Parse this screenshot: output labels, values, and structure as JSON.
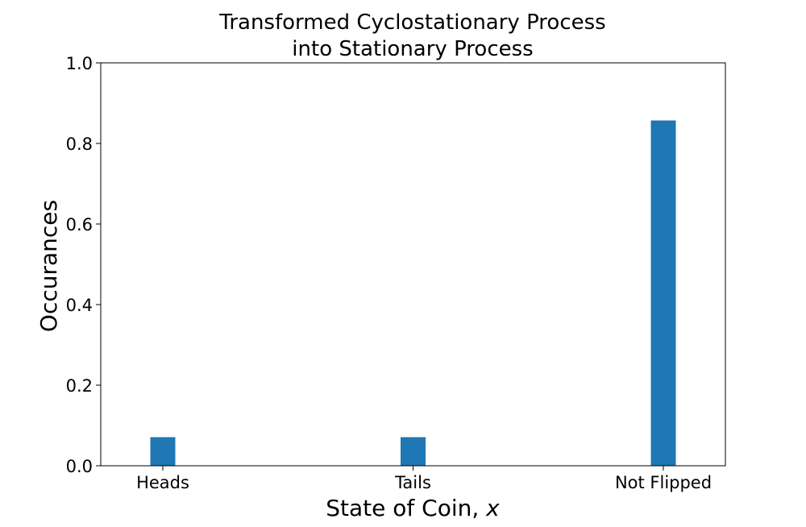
{
  "chart_data": {
    "type": "bar",
    "title_lines": [
      "Transformed Cyclostationary Process",
      "into Stationary Process"
    ],
    "xlabel_prefix": "State of Coin, ",
    "xlabel_var": "x",
    "ylabel": "Occurances",
    "categories": [
      "Heads",
      "Tails",
      "Not Flipped"
    ],
    "values": [
      0.071,
      0.071,
      0.857
    ],
    "ylim": [
      0,
      1.0
    ],
    "yticks": [
      0.0,
      0.2,
      0.4,
      0.6,
      0.8,
      1.0
    ],
    "ytick_labels": [
      "0.0",
      "0.2",
      "0.4",
      "0.6",
      "0.8",
      "1.0"
    ],
    "grid": false,
    "bar_color": "#1f77b4"
  }
}
